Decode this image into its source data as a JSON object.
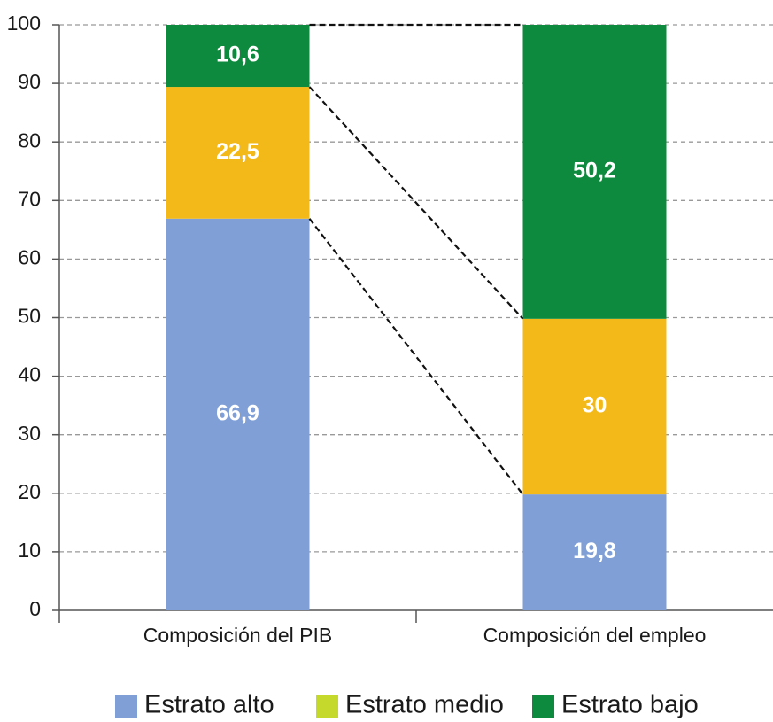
{
  "chart_data": {
    "type": "stacked_bar",
    "categories": [
      "Composición del PIB",
      "Composición del empleo"
    ],
    "series": [
      {
        "name": "Estrato alto",
        "color": "#7f9fd6",
        "legend_color": "#7f9fd6",
        "values": [
          66.9,
          19.8
        ],
        "value_labels": [
          "66,9",
          "19,8"
        ]
      },
      {
        "name": "Estrato medio",
        "color": "#f3b919",
        "legend_color": "#c5d92c",
        "values": [
          22.5,
          30
        ],
        "value_labels": [
          "22,5",
          "30"
        ]
      },
      {
        "name": "Estrato bajo",
        "color": "#0d8a3e",
        "legend_color": "#0d8a3e",
        "values": [
          10.6,
          50.2
        ],
        "value_labels": [
          "10,6",
          "50,2"
        ]
      }
    ],
    "ylim": [
      0,
      100
    ],
    "yticks": [
      0,
      10,
      20,
      30,
      40,
      50,
      60,
      70,
      80,
      90,
      100
    ],
    "grid": true,
    "legend": "bottom"
  }
}
